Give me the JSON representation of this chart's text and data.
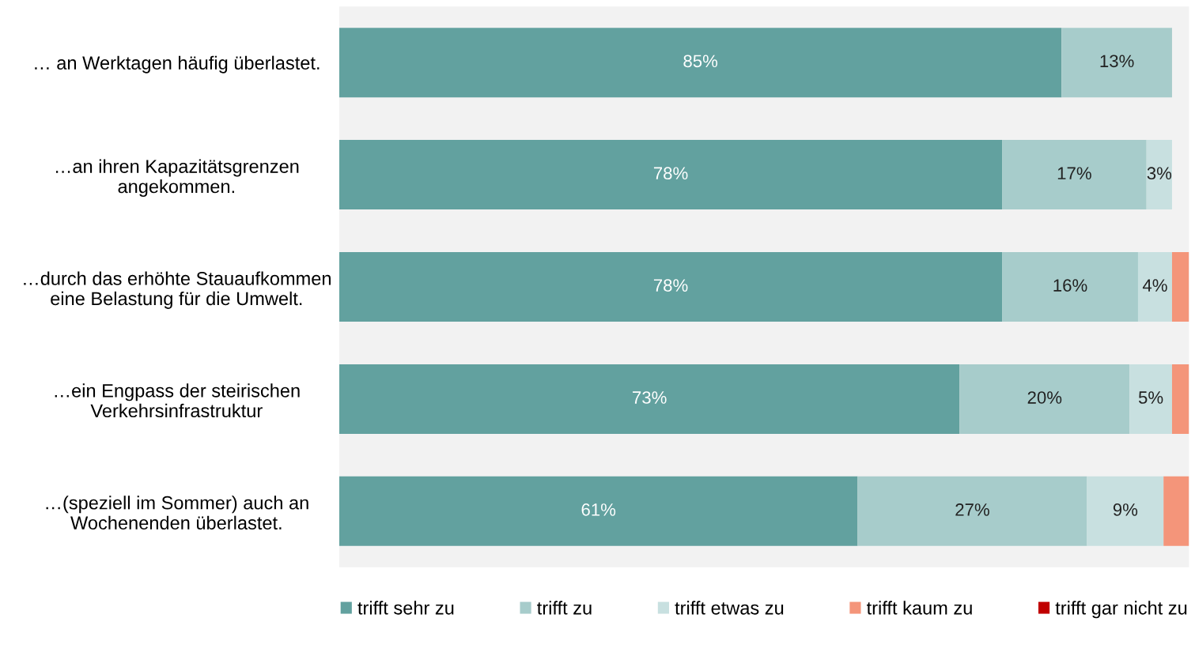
{
  "chart_data": {
    "type": "bar",
    "orientation": "horizontal",
    "stacked": true,
    "categories": [
      "… an Werktagen häufig überlastet.",
      "…an ihren Kapazitätsgrenzen\nangekommen.",
      "…durch das erhöhte Stauaufkommen\neine Belastung für die Umwelt.",
      "…ein Engpass der steirischen\nVerkehrsinfrastruktur",
      "…(speziell im Sommer) auch an\nWochenenden überlastet."
    ],
    "series": [
      {
        "name": "trifft sehr zu",
        "color": "#62a19f",
        "values": [
          85,
          78,
          78,
          73,
          61
        ],
        "value_labels": [
          "85%",
          "78%",
          "78%",
          "73%",
          "61%"
        ]
      },
      {
        "name": "trifft zu",
        "color": "#a7cccb",
        "values": [
          13,
          17,
          16,
          20,
          27
        ],
        "value_labels": [
          "13%",
          "17%",
          "16%",
          "20%",
          "27%"
        ]
      },
      {
        "name": "trifft etwas zu",
        "color": "#c8e0e0",
        "values": [
          null,
          3,
          4,
          5,
          9
        ],
        "value_labels": [
          null,
          "3%",
          "4%",
          "5%",
          "9%"
        ]
      },
      {
        "name": "trifft kaum zu",
        "color": "#f4957a",
        "values": [
          null,
          null,
          2,
          2,
          3
        ]
      },
      {
        "name": "trifft gar nicht zu",
        "color": "#c00000",
        "values": [
          null,
          null,
          null,
          null,
          null
        ]
      }
    ],
    "xlim": [
      0,
      100
    ],
    "tick_labels": "y",
    "grid": false,
    "legend": "bottom"
  }
}
